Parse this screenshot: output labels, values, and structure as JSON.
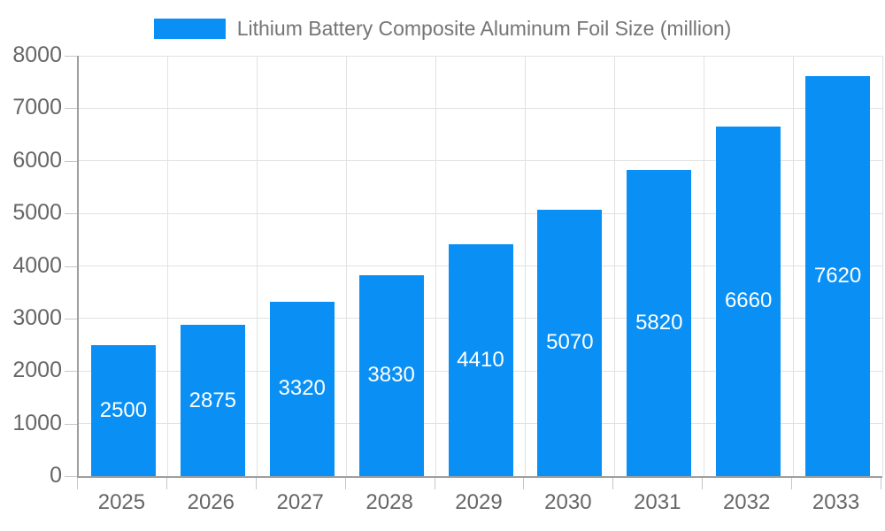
{
  "legend": {
    "label": "Lithium Battery Composite Aluminum Foil Size (million)"
  },
  "colors": {
    "bar": "#0a90f5",
    "legend_text": "#757575",
    "axis_text": "#666666",
    "axis_line": "#9e9e9e",
    "grid_line": "#e2e2e2",
    "tick_line": "#c6c6c6",
    "bar_label": "#ffffff",
    "background": "#ffffff"
  },
  "chart_data": {
    "type": "bar",
    "title": "Lithium Battery Composite Aluminum Foil Size (million)",
    "series_name": "Lithium Battery Composite Aluminum Foil Size (million)",
    "categories": [
      "2025",
      "2026",
      "2027",
      "2028",
      "2029",
      "2030",
      "2031",
      "2032",
      "2033"
    ],
    "values": [
      2500,
      2875,
      3320,
      3830,
      4410,
      5070,
      5820,
      6660,
      7620
    ],
    "bar_labels": [
      "2500",
      "2875",
      "3320",
      "3830",
      "4410",
      "5070",
      "5820",
      "6660",
      "7620"
    ],
    "xlabel": "",
    "ylabel": "",
    "ylim": [
      0,
      8000
    ],
    "ytick_step": 1000,
    "ytick_labels": [
      "0",
      "1000",
      "2000",
      "3000",
      "4000",
      "5000",
      "6000",
      "7000",
      "8000"
    ],
    "grid": true,
    "legend_position": "top"
  }
}
